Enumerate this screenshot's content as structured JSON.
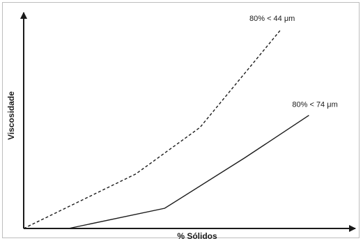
{
  "chart_data": {
    "type": "line",
    "title": "",
    "xlabel": "% Sólidos",
    "ylabel": "Viscosidade",
    "xlim": [
      0,
      100
    ],
    "ylim": [
      0,
      100
    ],
    "grid": false,
    "legend": "inline",
    "axis_ticks": false,
    "series": [
      {
        "name": "80% < 44 μm",
        "style": "dashed",
        "color": "#1a1a1a",
        "x": [
          0,
          35,
          55,
          80
        ],
        "y": [
          0,
          27,
          50,
          98
        ]
      },
      {
        "name": "80% < 74 μm",
        "style": "solid",
        "color": "#1a1a1a",
        "x": [
          14,
          44,
          69,
          89
        ],
        "y": [
          0,
          10,
          35,
          56
        ]
      }
    ]
  }
}
